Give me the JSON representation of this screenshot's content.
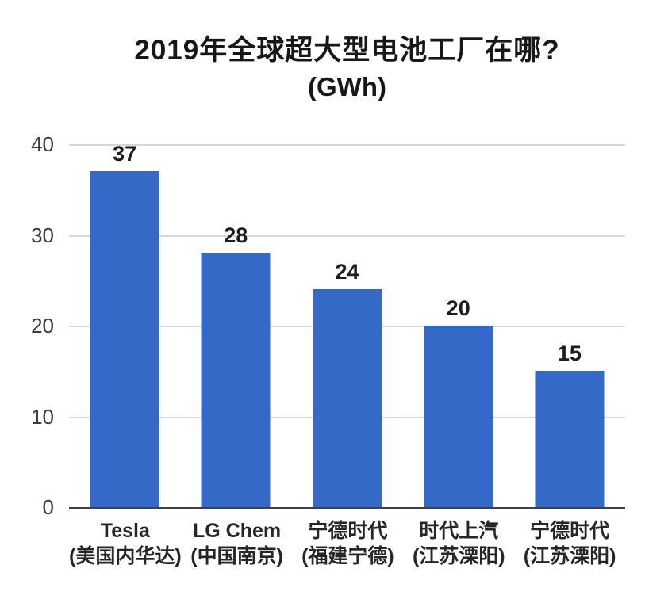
{
  "title": {
    "line1": "2019年全球超大型电池工厂在哪?",
    "line2": "(GWh)"
  },
  "chart_data": {
    "type": "bar",
    "title": "2019年全球超大型电池工厂在哪? (GWh)",
    "categories": [
      {
        "name": "Tesla",
        "location": "(美国内华达)"
      },
      {
        "name": "LG Chem",
        "location": "(中国南京)"
      },
      {
        "name": "宁德时代",
        "location": "(福建宁德)"
      },
      {
        "name": "时代上汽",
        "location": "(江苏溧阳)"
      },
      {
        "name": "宁德时代",
        "location": "(江苏溧阳)"
      }
    ],
    "values": [
      37,
      28,
      24,
      20,
      15
    ],
    "unit": "GWh",
    "xlabel": "",
    "ylabel": "",
    "ylim": [
      0,
      40
    ],
    "yticks": [
      0,
      10,
      20,
      30,
      40
    ],
    "grid": true,
    "legend": false,
    "colors": {
      "bar": "#3469c8",
      "gridline": "#d8d8d8",
      "axis": "#404040",
      "title_text": "#171717",
      "tick_text": "#3a3a3a",
      "value_text": "#1d1d1d",
      "category_text": "#262626",
      "background": "#ffffff"
    }
  }
}
